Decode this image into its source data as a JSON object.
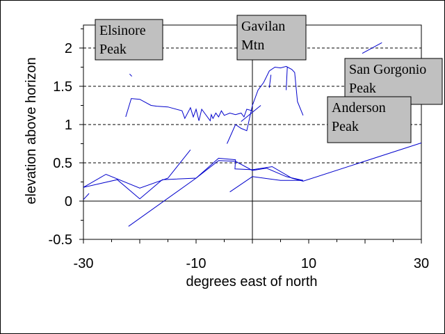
{
  "chart_data": {
    "type": "line",
    "title": "",
    "xlabel": "degrees east of north",
    "ylabel": "elevation above horizon",
    "xlim": [
      -30,
      30
    ],
    "ylim": [
      -0.5,
      2.3
    ],
    "x_ticks": [
      -30,
      -10,
      10,
      30
    ],
    "x_tick_labels": [
      "-30",
      "-10",
      "10",
      "30"
    ],
    "y_ticks": [
      -0.5,
      0,
      0.5,
      1,
      1.5,
      2
    ],
    "y_tick_labels": [
      "-0.5",
      "0",
      "0.5",
      "1",
      "1.5",
      "2"
    ],
    "grid": "horizontal dashed at 0.5, 1, 1.5, 2",
    "line_color": "#0000cc",
    "series": [
      {
        "x": [
          -30,
          -26,
          -20,
          -15,
          -11
        ],
        "y": [
          0.18,
          0.35,
          0.17,
          0.3,
          0.67
        ]
      },
      {
        "x": [
          -30,
          -24,
          -20,
          -16,
          -10,
          -6,
          -3,
          0,
          2.5,
          6,
          9
        ],
        "y": [
          0.18,
          0.28,
          0.03,
          0.28,
          0.3,
          0.53,
          0.52,
          0.4,
          0.43,
          0.32,
          0.27
        ]
      },
      {
        "x": [
          -22,
          -10,
          -6,
          -3,
          -3.1,
          0,
          3.5,
          7,
          9,
          30
        ],
        "y": [
          -0.33,
          0.3,
          0.56,
          0.54,
          0.42,
          0.41,
          0.45,
          0.3,
          0.26,
          0.76
        ]
      },
      {
        "x": [
          -4,
          0,
          5,
          9
        ],
        "y": [
          0.12,
          0.32,
          0.27,
          0.27
        ]
      },
      {
        "x": [
          -30,
          -29
        ],
        "y": [
          0.02,
          0.1
        ]
      },
      {
        "x": [
          -22.5,
          -21.5,
          -20,
          -18,
          -17,
          -15,
          -12.5,
          -12,
          -11,
          -10.5,
          -10,
          -9.5,
          -9,
          -7.5,
          -7.3,
          -7,
          -6.5,
          -6,
          -5.5,
          -5,
          -4,
          -3,
          -2,
          -1.5,
          -1,
          0
        ],
        "y": [
          1.1,
          1.34,
          1.33,
          1.25,
          1.24,
          1.23,
          1.18,
          1.08,
          1.22,
          1.1,
          1.2,
          1.05,
          1.2,
          1.05,
          1.13,
          1.08,
          1.15,
          1.1,
          1.18,
          1.12,
          1.15,
          1.13,
          1.15,
          1.1,
          1.2,
          1.18
        ]
      },
      {
        "x": [
          -4.5,
          -3,
          -2,
          -1,
          0,
          1,
          2,
          3,
          4,
          5,
          6,
          7,
          7.5,
          8,
          9
        ],
        "y": [
          0.75,
          1.0,
          0.95,
          0.92,
          1.25,
          1.45,
          1.55,
          1.7,
          1.75,
          1.74,
          1.76,
          1.72,
          1.68,
          1.3,
          1.12
        ]
      },
      {
        "x": [
          -2,
          1.5
        ],
        "y": [
          1.04,
          1.25
        ]
      },
      {
        "x": [
          3,
          3.3
        ],
        "y": [
          1.48,
          1.65
        ]
      },
      {
        "x": [
          6,
          6.2
        ],
        "y": [
          1.45,
          1.75
        ]
      },
      {
        "x": [
          -21.8,
          -21.4
        ],
        "y": [
          1.66,
          1.63
        ]
      },
      {
        "x": [
          19.5,
          23
        ],
        "y": [
          1.93,
          2.07
        ]
      }
    ],
    "annotations": [
      {
        "line1": "Elsinore",
        "line2": "Peak"
      },
      {
        "line1": "Gavilan",
        "line2": "Mtn"
      },
      {
        "line1": "San Gorgonio",
        "line2": "Peak"
      },
      {
        "line1": "Anderson",
        "line2": "Peak"
      }
    ]
  }
}
